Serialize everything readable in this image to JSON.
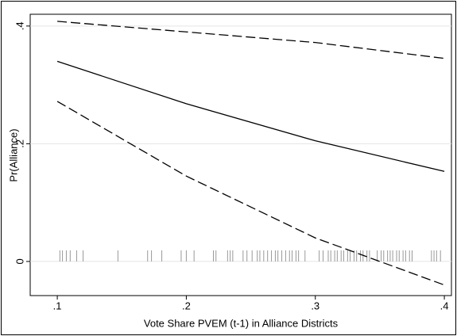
{
  "chart_data": {
    "type": "line",
    "x_label": "Vote Share PVEM (t-1) in Alliance Districts",
    "y_label": "Pr(Alliance)",
    "x": [
      0.1,
      0.2,
      0.3,
      0.4
    ],
    "series": [
      {
        "color": "#000000",
        "style": "dashed",
        "values": [
          0.408,
          0.39,
          0.372,
          0.345
        ]
      },
      {
        "color": "#000000",
        "style": "solid",
        "values": [
          0.34,
          0.268,
          0.205,
          0.153
        ]
      },
      {
        "color": "#000000",
        "style": "dashed",
        "values": [
          0.272,
          0.145,
          0.04,
          -0.04
        ]
      }
    ],
    "rug_x": [
      0.102,
      0.104,
      0.107,
      0.11,
      0.115,
      0.12,
      0.147,
      0.17,
      0.173,
      0.181,
      0.196,
      0.2,
      0.206,
      0.221,
      0.223,
      0.232,
      0.234,
      0.236,
      0.244,
      0.247,
      0.251,
      0.255,
      0.257,
      0.26,
      0.263,
      0.266,
      0.269,
      0.271,
      0.274,
      0.277,
      0.28,
      0.282,
      0.285,
      0.287,
      0.292,
      0.303,
      0.306,
      0.31,
      0.312,
      0.315,
      0.317,
      0.32,
      0.322,
      0.325,
      0.327,
      0.33,
      0.332,
      0.335,
      0.337,
      0.34,
      0.342,
      0.348,
      0.351,
      0.353,
      0.356,
      0.358,
      0.36,
      0.363,
      0.365,
      0.368,
      0.37,
      0.373,
      0.375,
      0.39,
      0.392,
      0.394,
      0.397
    ],
    "rug_color": "#999999",
    "xlim": [
      0.079,
      0.4055
    ],
    "ylim": [
      -0.058,
      0.42
    ],
    "xticks": [
      {
        "value": 0.1,
        "label": ".1"
      },
      {
        "value": 0.2,
        "label": ".2"
      },
      {
        "value": 0.3,
        "label": ".3"
      },
      {
        "value": 0.4,
        "label": ".4"
      }
    ],
    "yticks": [
      0,
      {
        "value": 0.2,
        "label": ".2"
      },
      {
        "value": 0.4,
        "label": ".4"
      }
    ],
    "grid": true
  }
}
